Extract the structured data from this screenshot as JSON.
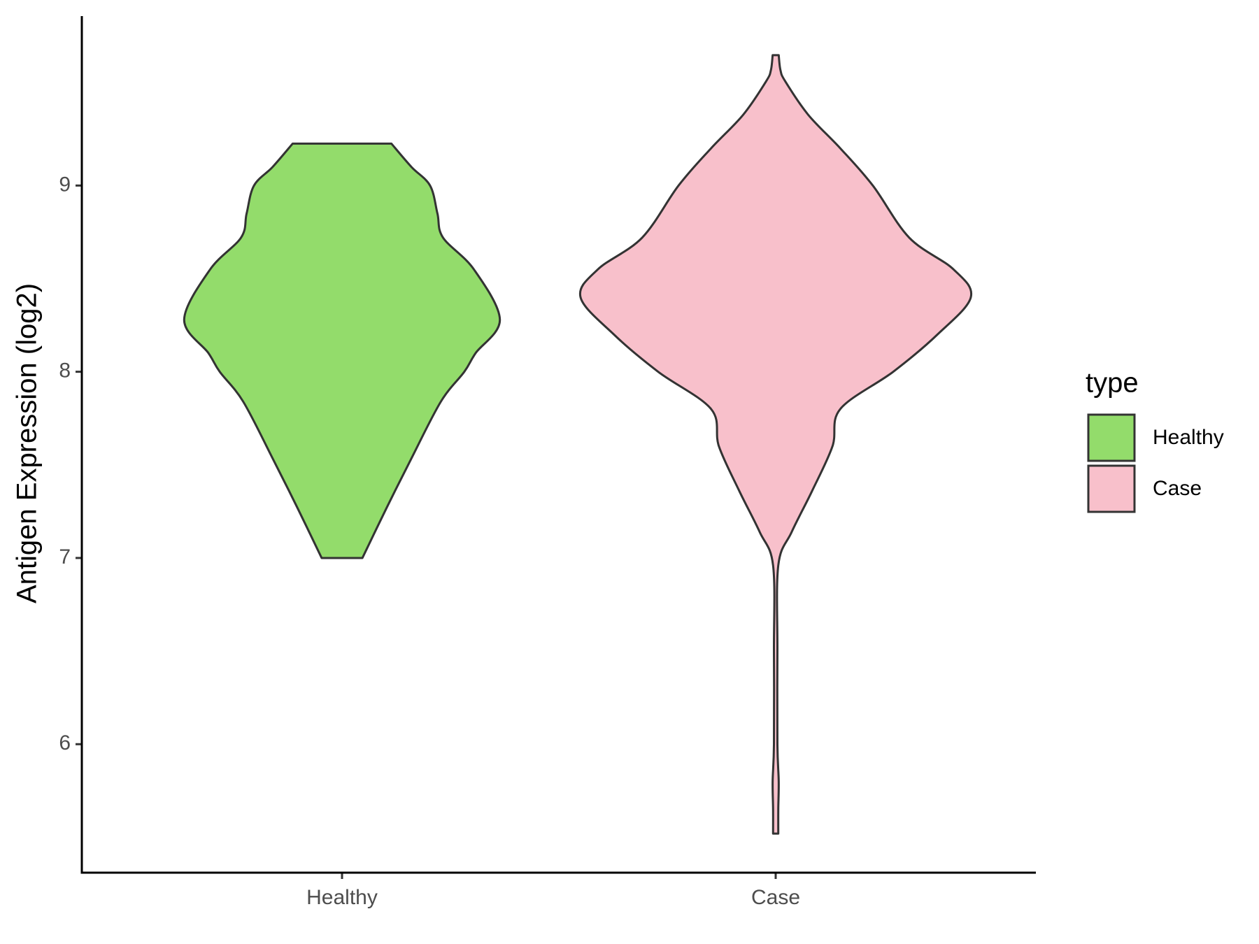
{
  "chart_data": {
    "type": "violin",
    "y_label": "Antigen Expression (log2)",
    "categories": [
      "Healthy",
      "Case"
    ],
    "ylim": [
      5.31,
      9.91
    ],
    "yticks": [
      6,
      7,
      8,
      9
    ],
    "legend_title": "type",
    "legend": "right",
    "series": [
      {
        "name": "Healthy",
        "color": "#93dc6b",
        "values": [
          9.225,
          9.1,
          9.0,
          8.85,
          8.72,
          8.55,
          8.28,
          8.1,
          8.0,
          7.84,
          7.53,
          7.27,
          7.0
        ],
        "widths": [
          0.114,
          0.16,
          0.203,
          0.22,
          0.233,
          0.304,
          0.364,
          0.308,
          0.282,
          0.228,
          0.159,
          0.103,
          0.047
        ]
      },
      {
        "name": "Case",
        "color": "#f8c0cb",
        "values": [
          9.7,
          9.62,
          9.56,
          9.38,
          9.2,
          9.0,
          8.72,
          8.55,
          8.4,
          8.2,
          8.0,
          7.8,
          7.6,
          7.36,
          7.14,
          6.96,
          6.5,
          6.0,
          5.8,
          5.65,
          5.52
        ],
        "widths": [
          0.007,
          0.011,
          0.022,
          0.075,
          0.149,
          0.224,
          0.308,
          0.41,
          0.45,
          0.373,
          0.271,
          0.149,
          0.131,
          0.084,
          0.037,
          0.006,
          0.004,
          0.004,
          0.007,
          0.006,
          0.006
        ]
      }
    ]
  }
}
